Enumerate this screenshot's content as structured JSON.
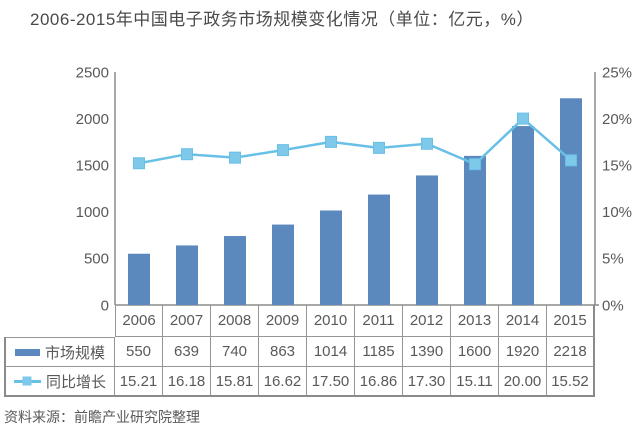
{
  "title": "2006-2015年中国电子政务市场规模变化情况（单位：亿元，%）",
  "source": "资料来源：前瞻产业研究院整理",
  "colors": {
    "bar": "#5b89bd",
    "line": "#69c0e7",
    "marker_fill": "#7ec8ea",
    "axis": "#8c8c8c",
    "table_border": "#969696",
    "text": "#595959",
    "title_text": "#4a4a4a"
  },
  "chart_data": {
    "type": "bar",
    "subtype": "bar-line-combo",
    "title": "2006-2015年中国电子政务市场规模变化情况（单位：亿元，%）",
    "categories": [
      "2006",
      "2007",
      "2008",
      "2009",
      "2010",
      "2011",
      "2012",
      "2013",
      "2014",
      "2015"
    ],
    "series": [
      {
        "name": "市场规模",
        "type": "bar",
        "axis": "left",
        "values": [
          550,
          639,
          740,
          863,
          1014,
          1185,
          1390,
          1600,
          1920,
          2218
        ]
      },
      {
        "name": "同比增长",
        "type": "line",
        "axis": "right",
        "values": [
          15.21,
          16.18,
          15.81,
          16.62,
          17.5,
          16.86,
          17.3,
          15.11,
          20.0,
          15.52
        ]
      }
    ],
    "left_axis": {
      "ticks": [
        "2500",
        "2000",
        "1500",
        "1000",
        "500",
        "0"
      ],
      "min": 0,
      "max": 2500
    },
    "right_axis": {
      "ticks": [
        "25%",
        "20%",
        "15%",
        "10%",
        "5%",
        "0%"
      ],
      "min": 0,
      "max": 25
    },
    "grid": false,
    "legend_position": "data-table-left",
    "xlabel": "",
    "ylabel_left": "亿元",
    "ylabel_right": "%"
  },
  "table": {
    "header_row": [
      "2006",
      "2007",
      "2008",
      "2009",
      "2010",
      "2011",
      "2012",
      "2013",
      "2014",
      "2015"
    ],
    "rows": [
      {
        "label": "市场规模",
        "icon": "bar-swatch",
        "cells": [
          "550",
          "639",
          "740",
          "863",
          "1014",
          "1185",
          "1390",
          "1600",
          "1920",
          "2218"
        ]
      },
      {
        "label": "同比增长",
        "icon": "line-marker-swatch",
        "cells": [
          "15.21",
          "16.18",
          "15.81",
          "16.62",
          "17.50",
          "16.86",
          "17.30",
          "15.11",
          "20.00",
          "15.52"
        ]
      }
    ]
  }
}
